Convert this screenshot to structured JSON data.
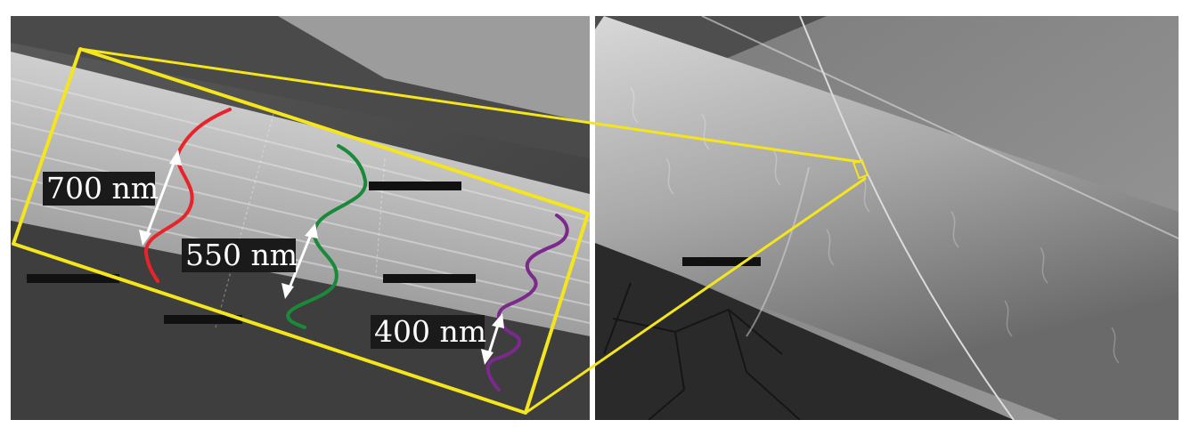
{
  "wavelength_labels": {
    "red": "700 nm",
    "green": "550 nm",
    "purple": "400 nm"
  },
  "colors": {
    "red_wave": "#e8242a",
    "green_wave": "#1a8a3a",
    "purple_wave": "#7b2a8c",
    "zoom_box": "#f5e51c",
    "label_bg": "#1a1a1a"
  }
}
